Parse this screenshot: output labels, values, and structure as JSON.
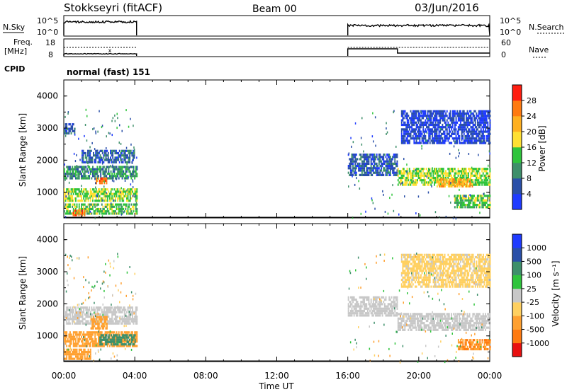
{
  "header": {
    "station": "Stokkseyri (fitACF)",
    "beam": "Beam 00",
    "date": "03/Jun/2016"
  },
  "status_panels": {
    "nsky_label": "N.Sky",
    "nsearch_label": "N.Search",
    "noise_left_ticks": [
      "10^5",
      "10^0"
    ],
    "noise_right_ticks": [
      "10^5",
      "10^0"
    ],
    "freq_label_1": "Freq.",
    "freq_label_2": "[MHz]",
    "freq_ticks": [
      "18",
      "8"
    ],
    "nave_label": "Nave",
    "nave_ticks": [
      "60",
      "0"
    ],
    "cpid_label": "CPID",
    "cpid_value": "normal (fast) 151"
  },
  "colors": {
    "power_scale": [
      "#1f3bff",
      "#2a4fa8",
      "#3e8f6a",
      "#2fc43c",
      "#ffe033",
      "#ffb020",
      "#ff7a10",
      "#ff1e10"
    ],
    "velocity_scale": [
      "#e81010",
      "#ff7a10",
      "#ffa030",
      "#ffd060",
      "#c8c8c8",
      "#2fc43c",
      "#3e8f6a",
      "#2a4fa8",
      "#1f3bff"
    ],
    "ground_scatter": "#c8c8c8"
  },
  "power_colorbar": {
    "title": "Power [dB]",
    "ticks": [
      "28",
      "24",
      "20",
      "16",
      "12",
      "8",
      "4"
    ]
  },
  "velocity_colorbar": {
    "title": "Velocity [m s⁻¹]",
    "ticks": [
      "1000",
      "500",
      "100",
      "25",
      "-25",
      "-100",
      "-500",
      "-1000"
    ]
  },
  "chart_data": [
    {
      "type": "heatmap",
      "name": "power",
      "ylabel": "Slant Range [km]",
      "yticks": [
        "4000",
        "3000",
        "2000",
        "1000"
      ],
      "ylim": [
        200,
        4500
      ],
      "xlim_hours": [
        0,
        24
      ],
      "x_ticks": [
        "00:00",
        "04:00",
        "08:00",
        "12:00",
        "16:00",
        "20:00",
        "00:00"
      ],
      "data_intervals_hours": [
        [
          0,
          4.1
        ],
        [
          16,
          24
        ]
      ],
      "scatter_bands": [
        {
          "t0": 0.0,
          "t1": 4.1,
          "r0": 1400,
          "r1": 1800,
          "power_db": 12
        },
        {
          "t0": 0.0,
          "t1": 4.1,
          "r0": 700,
          "r1": 1100,
          "power_db": 18
        },
        {
          "t0": 0.0,
          "t1": 4.1,
          "r0": 300,
          "r1": 600,
          "power_db": 16
        },
        {
          "t0": 0.5,
          "t1": 1.2,
          "r0": 250,
          "r1": 400,
          "power_db": 28
        },
        {
          "t0": 1.8,
          "t1": 2.4,
          "r0": 1250,
          "r1": 1450,
          "power_db": 28
        },
        {
          "t0": 1.0,
          "t1": 4.0,
          "r0": 1900,
          "r1": 2300,
          "power_db": 8
        },
        {
          "t0": 0.0,
          "t1": 0.6,
          "r0": 2800,
          "r1": 3100,
          "power_db": 8
        },
        {
          "t0": 16.0,
          "t1": 18.8,
          "r0": 1500,
          "r1": 2200,
          "power_db": 8
        },
        {
          "t0": 18.8,
          "t1": 24.0,
          "r0": 1200,
          "r1": 1700,
          "power_db": 18
        },
        {
          "t0": 21.0,
          "t1": 23.0,
          "r0": 1150,
          "r1": 1400,
          "power_db": 24
        },
        {
          "t0": 19.0,
          "t1": 24.0,
          "r0": 2500,
          "r1": 3500,
          "power_db": 6
        },
        {
          "t0": 22.0,
          "t1": 24.0,
          "r0": 500,
          "r1": 900,
          "power_db": 16
        }
      ]
    },
    {
      "type": "heatmap",
      "name": "velocity",
      "ylabel": "Slant Range [km]",
      "yticks": [
        "4000",
        "3000",
        "2000",
        "1000"
      ],
      "ylim": [
        200,
        4500
      ],
      "xlabel": "Time UT",
      "x_ticks": [
        "00:00",
        "04:00",
        "08:00",
        "12:00",
        "16:00",
        "20:00",
        "00:00"
      ],
      "scatter_bands": [
        {
          "t0": 0.0,
          "t1": 4.1,
          "r0": 1350,
          "r1": 1850,
          "vel": 0
        },
        {
          "t0": 0.0,
          "t1": 4.1,
          "r0": 650,
          "r1": 1100,
          "vel": -120
        },
        {
          "t0": 2.0,
          "t1": 4.0,
          "r0": 700,
          "r1": 1000,
          "vel": 120
        },
        {
          "t0": 0.0,
          "t1": 1.5,
          "r0": 250,
          "r1": 600,
          "vel": -300
        },
        {
          "t0": 1.5,
          "t1": 2.4,
          "r0": 1200,
          "r1": 1600,
          "vel": -200
        },
        {
          "t0": 16.0,
          "t1": 18.8,
          "r0": 1600,
          "r1": 2200,
          "vel": 0
        },
        {
          "t0": 18.8,
          "t1": 24.0,
          "r0": 1150,
          "r1": 1650,
          "vel": 0
        },
        {
          "t0": 22.2,
          "t1": 24.0,
          "r0": 550,
          "r1": 850,
          "vel": -500
        },
        {
          "t0": 19.0,
          "t1": 24.0,
          "r0": 2500,
          "r1": 3500,
          "vel": -40
        }
      ]
    }
  ]
}
